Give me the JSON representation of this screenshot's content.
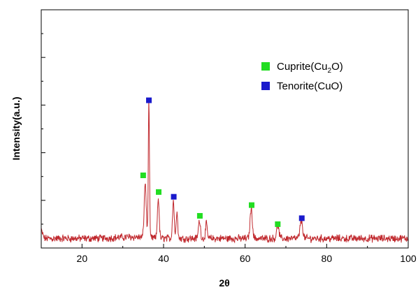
{
  "chart_data": {
    "type": "line",
    "title": "",
    "xlabel": "2θ",
    "ylabel": "Intensity(a.u.)",
    "xlim": [
      10,
      100
    ],
    "ylim": [
      0,
      100
    ],
    "y_tick_labels_shown": false,
    "x_ticks": [
      20,
      40,
      60,
      80,
      100
    ],
    "y_ticks": [
      10,
      20,
      30,
      40,
      50,
      60,
      70,
      80,
      90
    ],
    "grid": false,
    "legend_position": "top-right",
    "series": [
      {
        "color": "#c0282d",
        "baseline": 4,
        "peaks": [
          {
            "x": 35.5,
            "y": 23,
            "w": 0.35
          },
          {
            "x": 36.4,
            "y": 58,
            "w": 0.2
          },
          {
            "x": 38.7,
            "y": 17,
            "w": 0.3
          },
          {
            "x": 42.4,
            "y": 16,
            "w": 0.3
          },
          {
            "x": 43.3,
            "y": 12,
            "w": 0.25
          },
          {
            "x": 48.8,
            "y": 7.5,
            "w": 0.35
          },
          {
            "x": 50.5,
            "y": 6,
            "w": 0.3
          },
          {
            "x": 61.5,
            "y": 12.5,
            "w": 0.4
          },
          {
            "x": 68.0,
            "y": 5.5,
            "w": 0.4
          },
          {
            "x": 73.8,
            "y": 7.5,
            "w": 0.45
          }
        ]
      }
    ],
    "legend": [
      {
        "label_main": "Cuprite(Cu",
        "label_sub": "2",
        "label_end": "O)",
        "color": "#22dd22",
        "marker": "square"
      },
      {
        "label_main": "Tenorite(CuO)",
        "label_sub": "",
        "label_end": "",
        "color": "#1a1acc",
        "marker": "square"
      }
    ],
    "phase_markers": [
      {
        "phase": "Cuprite",
        "x": 35.0,
        "y": 30.5,
        "color": "#22dd22"
      },
      {
        "phase": "Tenorite",
        "x": 36.4,
        "y": 62.0,
        "color": "#1a1acc"
      },
      {
        "phase": "Cuprite",
        "x": 38.8,
        "y": 23.5,
        "color": "#22dd22"
      },
      {
        "phase": "Tenorite",
        "x": 42.5,
        "y": 21.5,
        "color": "#1a1acc"
      },
      {
        "phase": "Cuprite",
        "x": 48.9,
        "y": 13.5,
        "color": "#22dd22"
      },
      {
        "phase": "Cuprite",
        "x": 61.6,
        "y": 18.0,
        "color": "#22dd22"
      },
      {
        "phase": "Cuprite",
        "x": 68.0,
        "y": 10.0,
        "color": "#22dd22"
      },
      {
        "phase": "Tenorite",
        "x": 73.9,
        "y": 12.5,
        "color": "#1a1acc"
      }
    ]
  }
}
